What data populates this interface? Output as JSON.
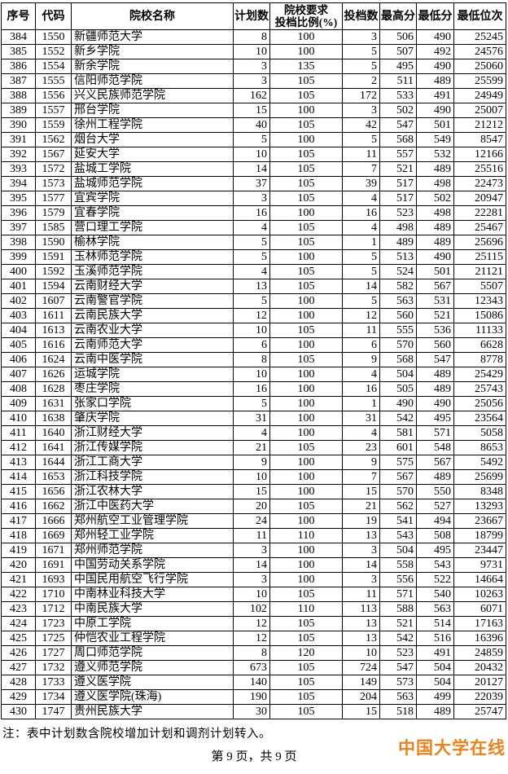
{
  "table": {
    "columns": [
      {
        "label": "序号"
      },
      {
        "label": "代码"
      },
      {
        "label": "院校名称"
      },
      {
        "label": "计划数"
      },
      {
        "label": "院校要求",
        "label2": "投档比例(%)"
      },
      {
        "label": "投档数"
      },
      {
        "label": "最高分"
      },
      {
        "label": "最低分"
      },
      {
        "label": "最低位次"
      }
    ],
    "rows": [
      [
        "384",
        "1550",
        "新疆师范大学",
        "8",
        "100",
        "3",
        "506",
        "490",
        "25245"
      ],
      [
        "385",
        "1552",
        "新乡学院",
        "10",
        "100",
        "5",
        "507",
        "492",
        "24576"
      ],
      [
        "386",
        "1554",
        "新余学院",
        "3",
        "135",
        "5",
        "495",
        "490",
        "25060"
      ],
      [
        "387",
        "1555",
        "信阳师范学院",
        "3",
        "105",
        "2",
        "511",
        "489",
        "25599"
      ],
      [
        "388",
        "1556",
        "兴义民族师范学院",
        "162",
        "105",
        "172",
        "533",
        "491",
        "24949"
      ],
      [
        "389",
        "1557",
        "邢台学院",
        "15",
        "100",
        "3",
        "502",
        "490",
        "25007"
      ],
      [
        "390",
        "1559",
        "徐州工程学院",
        "40",
        "105",
        "42",
        "547",
        "501",
        "21212"
      ],
      [
        "391",
        "1562",
        "烟台大学",
        "5",
        "100",
        "5",
        "568",
        "549",
        "8547"
      ],
      [
        "392",
        "1567",
        "延安大学",
        "10",
        "105",
        "11",
        "557",
        "532",
        "12166"
      ],
      [
        "393",
        "1572",
        "盐城工学院",
        "14",
        "105",
        "7",
        "521",
        "489",
        "25516"
      ],
      [
        "394",
        "1573",
        "盐城师范学院",
        "37",
        "105",
        "39",
        "517",
        "498",
        "22473"
      ],
      [
        "395",
        "1577",
        "宜宾学院",
        "3",
        "105",
        "4",
        "517",
        "502",
        "20947"
      ],
      [
        "396",
        "1579",
        "宜春学院",
        "16",
        "100",
        "16",
        "523",
        "498",
        "22281"
      ],
      [
        "397",
        "1585",
        "营口理工学院",
        "4",
        "105",
        "4",
        "498",
        "489",
        "25467"
      ],
      [
        "398",
        "1590",
        "榆林学院",
        "5",
        "105",
        "1",
        "489",
        "489",
        "25696"
      ],
      [
        "399",
        "1591",
        "玉林师范学院",
        "5",
        "100",
        "5",
        "513",
        "490",
        "25115"
      ],
      [
        "400",
        "1592",
        "玉溪师范学院",
        "4",
        "105",
        "5",
        "524",
        "501",
        "21121"
      ],
      [
        "401",
        "1594",
        "云南财经大学",
        "13",
        "105",
        "14",
        "582",
        "567",
        "5507"
      ],
      [
        "402",
        "1607",
        "云南警官学院",
        "5",
        "100",
        "5",
        "563",
        "531",
        "12343"
      ],
      [
        "403",
        "1611",
        "云南民族大学",
        "12",
        "100",
        "12",
        "560",
        "521",
        "15086"
      ],
      [
        "404",
        "1613",
        "云南农业大学",
        "10",
        "105",
        "11",
        "555",
        "536",
        "11133"
      ],
      [
        "405",
        "1616",
        "云南师范大学",
        "6",
        "100",
        "6",
        "570",
        "560",
        "6628"
      ],
      [
        "406",
        "1624",
        "云南中医学院",
        "8",
        "105",
        "9",
        "568",
        "547",
        "8778"
      ],
      [
        "407",
        "1626",
        "运城学院",
        "10",
        "100",
        "4",
        "504",
        "489",
        "25429"
      ],
      [
        "408",
        "1628",
        "枣庄学院",
        "16",
        "100",
        "16",
        "505",
        "489",
        "25743"
      ],
      [
        "409",
        "1631",
        "张家口学院",
        "5",
        "100",
        "1",
        "490",
        "490",
        "25056"
      ],
      [
        "410",
        "1638",
        "肇庆学院",
        "31",
        "100",
        "31",
        "542",
        "495",
        "23564"
      ],
      [
        "411",
        "1640",
        "浙江财经大学",
        "4",
        "100",
        "4",
        "581",
        "571",
        "5058"
      ],
      [
        "412",
        "1641",
        "浙江传媒学院",
        "21",
        "105",
        "23",
        "601",
        "548",
        "8653"
      ],
      [
        "413",
        "1644",
        "浙江工商大学",
        "9",
        "100",
        "9",
        "575",
        "567",
        "5492"
      ],
      [
        "414",
        "1653",
        "浙江科技学院",
        "10",
        "100",
        "7",
        "567",
        "489",
        "25699"
      ],
      [
        "415",
        "1656",
        "浙江农林大学",
        "15",
        "100",
        "15",
        "570",
        "550",
        "8348"
      ],
      [
        "416",
        "1662",
        "浙江中医药大学",
        "20",
        "105",
        "21",
        "562",
        "527",
        "13293"
      ],
      [
        "417",
        "1666",
        "郑州航空工业管理学院",
        "24",
        "100",
        "19",
        "541",
        "494",
        "23667"
      ],
      [
        "418",
        "1669",
        "郑州轻工业学院",
        "11",
        "110",
        "13",
        "543",
        "508",
        "18799"
      ],
      [
        "419",
        "1671",
        "郑州师范学院",
        "3",
        "100",
        "3",
        "504",
        "495",
        "23447"
      ],
      [
        "420",
        "1691",
        "中国劳动关系学院",
        "14",
        "100",
        "14",
        "558",
        "543",
        "9731"
      ],
      [
        "421",
        "1693",
        "中国民用航空飞行学院",
        "3",
        "100",
        "3",
        "556",
        "522",
        "14664"
      ],
      [
        "422",
        "1710",
        "中南林业科技大学",
        "10",
        "105",
        "11",
        "571",
        "540",
        "10263"
      ],
      [
        "423",
        "1712",
        "中南民族大学",
        "102",
        "110",
        "113",
        "588",
        "563",
        "6071"
      ],
      [
        "424",
        "1723",
        "中原工学院",
        "12",
        "105",
        "13",
        "521",
        "514",
        "17163"
      ],
      [
        "425",
        "1725",
        "仲恺农业工程学院",
        "12",
        "105",
        "13",
        "542",
        "516",
        "16396"
      ],
      [
        "426",
        "1727",
        "周口师范学院",
        "8",
        "120",
        "10",
        "523",
        "491",
        "24859"
      ],
      [
        "427",
        "1732",
        "遵义师范学院",
        "673",
        "105",
        "724",
        "547",
        "504",
        "20432"
      ],
      [
        "428",
        "1733",
        "遵义医学院",
        "140",
        "105",
        "149",
        "573",
        "504",
        "20127"
      ],
      [
        "429",
        "1734",
        "遵义医学院(珠海)",
        "190",
        "105",
        "204",
        "563",
        "499",
        "22039"
      ],
      [
        "430",
        "1747",
        "贵州民族大学",
        "30",
        "105",
        "15",
        "518",
        "489",
        "25747"
      ]
    ]
  },
  "footer": {
    "note": "注：表中计划数含院校增加计划和调剂计划转入。",
    "watermark": "中国大学在线",
    "watermark_color": "#E8821E",
    "page_indicator": "第 9 页，共 9 页"
  }
}
